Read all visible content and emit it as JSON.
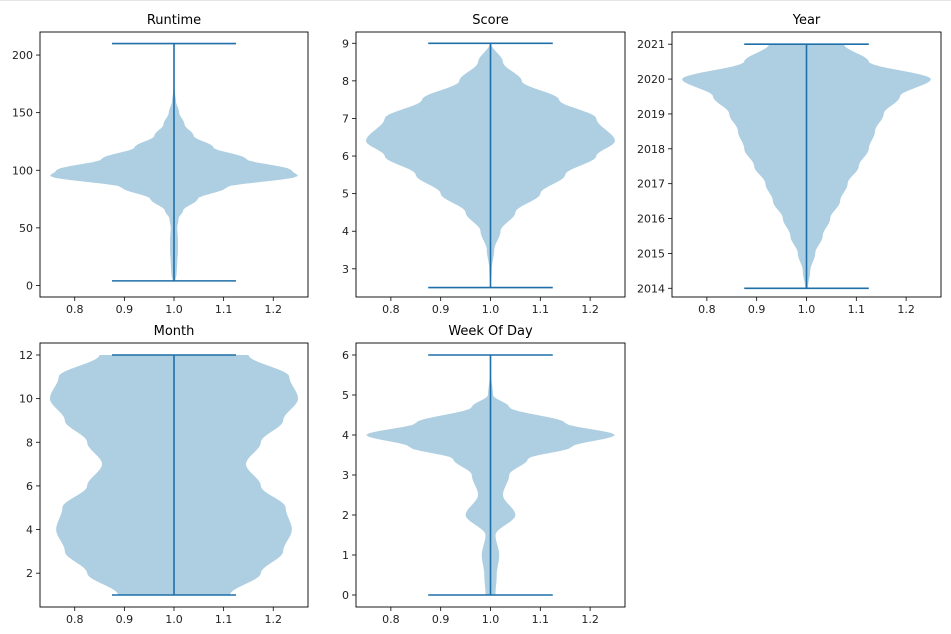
{
  "chart_data": [
    {
      "type": "violin",
      "title": "Runtime",
      "xlim": [
        0.73,
        1.27
      ],
      "ylim": [
        -10,
        220
      ],
      "xticks": [
        "0.8",
        "0.9",
        "1.0",
        "1.1",
        "1.2"
      ],
      "yticks": [
        "0",
        "50",
        "100",
        "150",
        "200"
      ],
      "position": 1,
      "min": 4,
      "max": 210,
      "density_profile": [
        [
          4,
          0.01
        ],
        [
          10,
          0.02
        ],
        [
          20,
          0.025
        ],
        [
          30,
          0.03
        ],
        [
          40,
          0.03
        ],
        [
          50,
          0.025
        ],
        [
          58,
          0.035
        ],
        [
          65,
          0.07
        ],
        [
          75,
          0.18
        ],
        [
          85,
          0.4
        ],
        [
          95,
          0.95
        ],
        [
          100,
          0.9
        ],
        [
          110,
          0.55
        ],
        [
          120,
          0.3
        ],
        [
          130,
          0.15
        ],
        [
          140,
          0.08
        ],
        [
          150,
          0.04
        ],
        [
          160,
          0.015
        ],
        [
          170,
          0.005
        ],
        [
          190,
          0.002
        ],
        [
          210,
          0.001
        ]
      ],
      "color": "#aecfe2",
      "line_color": "#1f6fa8"
    },
    {
      "type": "violin",
      "title": "Score",
      "xlim": [
        0.73,
        1.27
      ],
      "ylim": [
        2.25,
        9.3
      ],
      "xticks": [
        "0.8",
        "0.9",
        "1.0",
        "1.1",
        "1.2"
      ],
      "yticks": [
        "3",
        "4",
        "5",
        "6",
        "7",
        "8",
        "9"
      ],
      "position": 1,
      "min": 2.5,
      "max": 9,
      "density_profile": [
        [
          2.5,
          0.003
        ],
        [
          3.0,
          0.01
        ],
        [
          3.5,
          0.03
        ],
        [
          4.0,
          0.08
        ],
        [
          4.5,
          0.2
        ],
        [
          5.0,
          0.4
        ],
        [
          5.5,
          0.6
        ],
        [
          6.0,
          0.85
        ],
        [
          6.4,
          1.0
        ],
        [
          7.0,
          0.85
        ],
        [
          7.5,
          0.55
        ],
        [
          8.0,
          0.25
        ],
        [
          8.5,
          0.1
        ],
        [
          9.0,
          0.005
        ]
      ],
      "color": "#aecfe2",
      "line_color": "#1f6fa8"
    },
    {
      "type": "violin",
      "title": "Year",
      "xlim": [
        0.73,
        1.27
      ],
      "ylim": [
        2013.75,
        2021.35
      ],
      "xticks": [
        "0.8",
        "0.9",
        "1.0",
        "1.1",
        "1.2"
      ],
      "yticks": [
        "2014",
        "2015",
        "2016",
        "2017",
        "2018",
        "2019",
        "2020",
        "2021"
      ],
      "position": 1,
      "min": 2014,
      "max": 2021,
      "density_profile": [
        [
          2014,
          0.01
        ],
        [
          2014.5,
          0.03
        ],
        [
          2015,
          0.07
        ],
        [
          2015.5,
          0.13
        ],
        [
          2016,
          0.19
        ],
        [
          2016.5,
          0.27
        ],
        [
          2017,
          0.33
        ],
        [
          2017.5,
          0.42
        ],
        [
          2018,
          0.5
        ],
        [
          2018.5,
          0.55
        ],
        [
          2019,
          0.62
        ],
        [
          2019.5,
          0.75
        ],
        [
          2020,
          1.0
        ],
        [
          2020.5,
          0.5
        ],
        [
          2021,
          0.3
        ]
      ],
      "color": "#aecfe2",
      "line_color": "#1f6fa8"
    },
    {
      "type": "violin",
      "title": "Month",
      "xlim": [
        0.73,
        1.27
      ],
      "ylim": [
        0.45,
        12.55
      ],
      "xticks": [
        "0.8",
        "0.9",
        "1.0",
        "1.1",
        "1.2"
      ],
      "yticks": [
        "2",
        "4",
        "6",
        "8",
        "10",
        "12"
      ],
      "position": 1,
      "min": 1,
      "max": 12,
      "density_profile": [
        [
          1,
          0.45
        ],
        [
          2,
          0.7
        ],
        [
          3,
          0.88
        ],
        [
          4,
          0.95
        ],
        [
          5,
          0.9
        ],
        [
          6,
          0.7
        ],
        [
          7,
          0.58
        ],
        [
          8,
          0.7
        ],
        [
          9,
          0.88
        ],
        [
          10,
          1.0
        ],
        [
          11,
          0.93
        ],
        [
          12,
          0.6
        ]
      ],
      "color": "#aecfe2",
      "line_color": "#1f6fa8"
    },
    {
      "type": "violin",
      "title": "Week Of Day",
      "xlim": [
        0.73,
        1.27
      ],
      "ylim": [
        -0.3,
        6.3
      ],
      "xticks": [
        "0.8",
        "0.9",
        "1.0",
        "1.1",
        "1.2"
      ],
      "yticks": [
        "0",
        "1",
        "2",
        "3",
        "4",
        "5",
        "6"
      ],
      "position": 1,
      "min": 0,
      "max": 6,
      "density_profile": [
        [
          0,
          0.04
        ],
        [
          0.5,
          0.05
        ],
        [
          1.0,
          0.07
        ],
        [
          1.5,
          0.04
        ],
        [
          2.0,
          0.2
        ],
        [
          2.5,
          0.1
        ],
        [
          3.0,
          0.15
        ],
        [
          3.4,
          0.3
        ],
        [
          3.7,
          0.65
        ],
        [
          4.0,
          1.0
        ],
        [
          4.3,
          0.6
        ],
        [
          4.7,
          0.15
        ],
        [
          5.0,
          0.02
        ],
        [
          5.5,
          0.005
        ],
        [
          6.0,
          0.005
        ]
      ],
      "color": "#aecfe2",
      "line_color": "#1f6fa8"
    }
  ]
}
